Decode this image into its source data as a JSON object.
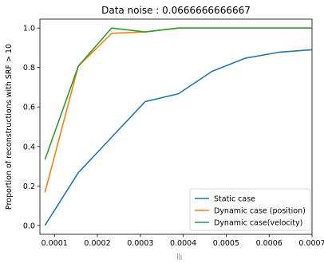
{
  "chart_data": {
    "type": "line",
    "title": "Data noise : 0.0666666666667",
    "xlabel": "",
    "ylabel": "Proportion of reconstructions with SRF > 10",
    "xlim": [
      6.61e-05,
      0.0007
    ],
    "ylim": [
      -0.045,
      1.045
    ],
    "xticks": [
      {
        "value": 0.0001,
        "label": "0.0001"
      },
      {
        "value": 0.0002,
        "label": "0.0002"
      },
      {
        "value": 0.0003,
        "label": "0.0003"
      },
      {
        "value": 0.0004,
        "label": "0.0004"
      },
      {
        "value": 0.0005,
        "label": "0.0005"
      },
      {
        "value": 0.0006,
        "label": "0.0006"
      },
      {
        "value": 0.0007,
        "label": "0.0007"
      }
    ],
    "yticks": [
      {
        "value": 0.0,
        "label": "0.0"
      },
      {
        "value": 0.2,
        "label": "0.2"
      },
      {
        "value": 0.4,
        "label": "0.4"
      },
      {
        "value": 0.6,
        "label": "0.6"
      },
      {
        "value": 0.8,
        "label": "0.8"
      },
      {
        "value": 1.0,
        "label": "1.0"
      }
    ],
    "x": [
      7.78e-05,
      0.0001556,
      0.0002333,
      0.0003111,
      0.0003889,
      0.0004667,
      0.0005444,
      0.0006222,
      0.0007
    ],
    "series": [
      {
        "name": "Static case",
        "color": "#1f77b4",
        "values": [
          0.0,
          0.267,
          0.447,
          0.627,
          0.667,
          0.78,
          0.847,
          0.877,
          0.89
        ]
      },
      {
        "name": "Dynamic case (position)",
        "color": "#ff7f0e",
        "values": [
          0.167,
          0.807,
          0.973,
          0.98,
          1.0,
          1.0,
          1.0,
          1.0,
          1.0
        ]
      },
      {
        "name": "Dynamic case(velocity)",
        "color": "#2ca02c",
        "values": [
          0.333,
          0.807,
          1.0,
          0.98,
          1.0,
          1.0,
          1.0,
          1.0,
          1.0
        ]
      }
    ],
    "grid": false,
    "legend_position": "bottom-right"
  }
}
